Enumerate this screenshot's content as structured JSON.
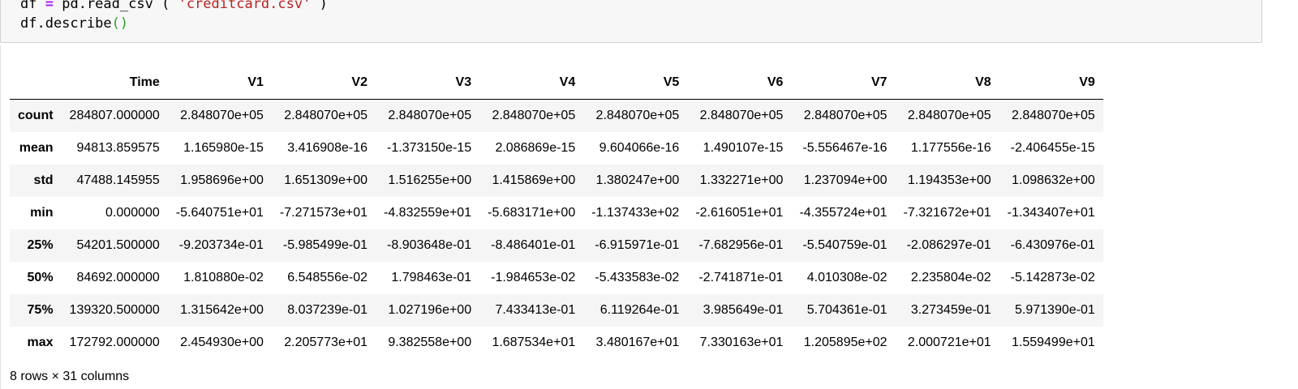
{
  "cell": {
    "line1": {
      "var": "df",
      "op": "=",
      "call": "pd.read_csv",
      "open": "(",
      "arg": "'creditcard.csv'",
      "close": ")"
    },
    "line2": {
      "call": "df.describe",
      "parens": "()"
    }
  },
  "table": {
    "columns": [
      "",
      "Time",
      "V1",
      "V2",
      "V3",
      "V4",
      "V5",
      "V6",
      "V7",
      "V8",
      "V9"
    ],
    "rows": [
      {
        "index": "count",
        "values": [
          "284807.000000",
          "2.848070e+05",
          "2.848070e+05",
          "2.848070e+05",
          "2.848070e+05",
          "2.848070e+05",
          "2.848070e+05",
          "2.848070e+05",
          "2.848070e+05",
          "2.848070e+05"
        ]
      },
      {
        "index": "mean",
        "values": [
          "94813.859575",
          "1.165980e-15",
          "3.416908e-16",
          "-1.373150e-15",
          "2.086869e-15",
          "9.604066e-16",
          "1.490107e-15",
          "-5.556467e-16",
          "1.177556e-16",
          "-2.406455e-15"
        ]
      },
      {
        "index": "std",
        "values": [
          "47488.145955",
          "1.958696e+00",
          "1.651309e+00",
          "1.516255e+00",
          "1.415869e+00",
          "1.380247e+00",
          "1.332271e+00",
          "1.237094e+00",
          "1.194353e+00",
          "1.098632e+00"
        ]
      },
      {
        "index": "min",
        "values": [
          "0.000000",
          "-5.640751e+01",
          "-7.271573e+01",
          "-4.832559e+01",
          "-5.683171e+00",
          "-1.137433e+02",
          "-2.616051e+01",
          "-4.355724e+01",
          "-7.321672e+01",
          "-1.343407e+01"
        ]
      },
      {
        "index": "25%",
        "values": [
          "54201.500000",
          "-9.203734e-01",
          "-5.985499e-01",
          "-8.903648e-01",
          "-8.486401e-01",
          "-6.915971e-01",
          "-7.682956e-01",
          "-5.540759e-01",
          "-2.086297e-01",
          "-6.430976e-01"
        ]
      },
      {
        "index": "50%",
        "values": [
          "84692.000000",
          "1.810880e-02",
          "6.548556e-02",
          "1.798463e-01",
          "-1.984653e-02",
          "-5.433583e-02",
          "-2.741871e-01",
          "4.010308e-02",
          "2.235804e-02",
          "-5.142873e-02"
        ]
      },
      {
        "index": "75%",
        "values": [
          "139320.500000",
          "1.315642e+00",
          "8.037239e-01",
          "1.027196e+00",
          "7.433413e-01",
          "6.119264e-01",
          "3.985649e-01",
          "5.704361e-01",
          "3.273459e-01",
          "5.971390e-01"
        ]
      },
      {
        "index": "max",
        "values": [
          "172792.000000",
          "2.454930e+00",
          "2.205773e+01",
          "9.382558e+00",
          "1.687534e+01",
          "3.480167e+01",
          "7.330163e+01",
          "1.205895e+02",
          "2.000721e+01",
          "1.559499e+01"
        ]
      }
    ]
  },
  "shape_note": "8 rows × 31 columns",
  "colors": {
    "keyword_op": "#aa22ff",
    "string": "#ba2121",
    "paren": "#2ca02c",
    "input_bg": "#f7f7f7",
    "row_stripe": "#f5f5f5"
  }
}
